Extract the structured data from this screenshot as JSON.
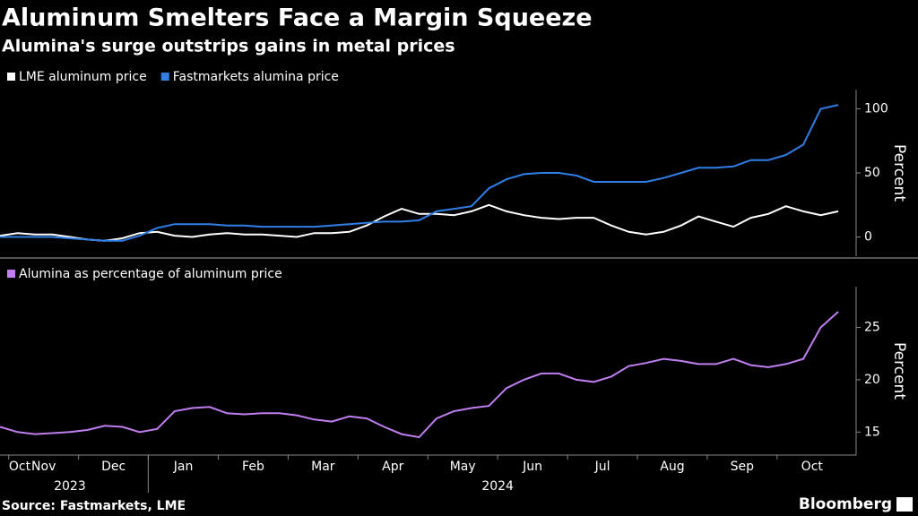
{
  "title": "Aluminum Smelters Face a Margin Squeeze",
  "subtitle": "Alumina's surge outstrips gains in metal prices",
  "source": "Source: Fastmarkets, LME",
  "brand": "Bloomberg",
  "chart_data": [
    {
      "type": "line",
      "x": [
        "2023-10",
        "2023-11",
        "2023-11",
        "2023-11",
        "2023-11",
        "2023-12",
        "2023-12",
        "2023-12",
        "2023-12",
        "2024-01",
        "2024-01",
        "2024-01",
        "2024-01",
        "2024-02",
        "2024-02",
        "2024-02",
        "2024-02",
        "2024-03",
        "2024-03",
        "2024-03",
        "2024-03",
        "2024-04",
        "2024-04",
        "2024-04",
        "2024-04",
        "2024-05",
        "2024-05",
        "2024-05",
        "2024-05",
        "2024-06",
        "2024-06",
        "2024-06",
        "2024-06",
        "2024-07",
        "2024-07",
        "2024-07",
        "2024-07",
        "2024-08",
        "2024-08",
        "2024-08",
        "2024-08",
        "2024-09",
        "2024-09",
        "2024-09",
        "2024-09",
        "2024-10",
        "2024-10",
        "2024-10",
        "2024-10"
      ],
      "series": [
        {
          "name": "LME aluminum price",
          "color": "#ffffff",
          "values": [
            1,
            3,
            2,
            2,
            0,
            -2,
            -3,
            -1,
            3,
            4,
            1,
            0,
            2,
            3,
            2,
            2,
            1,
            0,
            3,
            3,
            4,
            9,
            16,
            22,
            18,
            18,
            17,
            20,
            25,
            20,
            17,
            15,
            14,
            15,
            15,
            9,
            4,
            2,
            4,
            9,
            16,
            12,
            8,
            15,
            18,
            24,
            20,
            17,
            20
          ]
        },
        {
          "name": "Fastmarkets alumina price",
          "color": "#2f7fe6",
          "values": [
            0,
            0,
            0,
            0,
            -1,
            -2,
            -3,
            -3,
            1,
            7,
            10,
            10,
            10,
            9,
            9,
            8,
            8,
            8,
            8,
            9,
            10,
            11,
            12,
            12,
            13,
            20,
            22,
            24,
            38,
            45,
            49,
            50,
            50,
            48,
            43,
            43,
            43,
            43,
            46,
            50,
            54,
            54,
            55,
            60,
            60,
            64,
            72,
            100,
            103
          ]
        }
      ],
      "y_label": "Percent",
      "ylim": [
        -15,
        115
      ],
      "yticks": [
        0,
        50,
        100
      ]
    },
    {
      "type": "line",
      "x": [
        "2023-10",
        "2023-11",
        "2023-11",
        "2023-11",
        "2023-11",
        "2023-12",
        "2023-12",
        "2023-12",
        "2023-12",
        "2024-01",
        "2024-01",
        "2024-01",
        "2024-01",
        "2024-02",
        "2024-02",
        "2024-02",
        "2024-02",
        "2024-03",
        "2024-03",
        "2024-03",
        "2024-03",
        "2024-04",
        "2024-04",
        "2024-04",
        "2024-04",
        "2024-05",
        "2024-05",
        "2024-05",
        "2024-05",
        "2024-06",
        "2024-06",
        "2024-06",
        "2024-06",
        "2024-07",
        "2024-07",
        "2024-07",
        "2024-07",
        "2024-08",
        "2024-08",
        "2024-08",
        "2024-08",
        "2024-09",
        "2024-09",
        "2024-09",
        "2024-09",
        "2024-10",
        "2024-10",
        "2024-10",
        "2024-10"
      ],
      "series": [
        {
          "name": "Alumina as percentage of aluminum price",
          "color": "#c07ef0",
          "values": [
            15.5,
            15.0,
            14.8,
            14.9,
            15.0,
            15.2,
            15.6,
            15.5,
            15.0,
            15.3,
            17.0,
            17.3,
            17.4,
            16.8,
            16.7,
            16.8,
            16.8,
            16.6,
            16.2,
            16.0,
            16.5,
            16.3,
            15.5,
            14.8,
            14.5,
            16.3,
            17.0,
            17.3,
            17.5,
            19.2,
            20.0,
            20.6,
            20.6,
            20.0,
            19.8,
            20.3,
            21.3,
            21.6,
            22.0,
            21.8,
            21.5,
            21.5,
            22.0,
            21.4,
            21.2,
            21.5,
            22.0,
            25.0,
            26.5
          ]
        }
      ],
      "y_label": "Percent",
      "ylim": [
        12.8,
        28.9
      ],
      "yticks": [
        15,
        20,
        25
      ],
      "xticks": [
        {
          "value": "2023-10",
          "label": "Oct"
        },
        {
          "value": "2023-11",
          "label": "Nov"
        },
        {
          "value": "2023-12",
          "label": "Dec"
        },
        {
          "value": "2024-01",
          "label": "Jan"
        },
        {
          "value": "2024-02",
          "label": "Feb"
        },
        {
          "value": "2024-03",
          "label": "Mar"
        },
        {
          "value": "2024-04",
          "label": "Apr"
        },
        {
          "value": "2024-05",
          "label": "May"
        },
        {
          "value": "2024-06",
          "label": "Jun"
        },
        {
          "value": "2024-07",
          "label": "Jul"
        },
        {
          "value": "2024-08",
          "label": "Aug"
        },
        {
          "value": "2024-09",
          "label": "Sep"
        },
        {
          "value": "2024-10",
          "label": "Oct"
        }
      ],
      "years": [
        "2023",
        "2024"
      ]
    }
  ]
}
